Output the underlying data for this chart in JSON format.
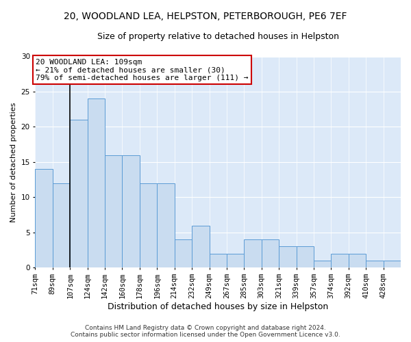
{
  "title1": "20, WOODLAND LEA, HELPSTON, PETERBOROUGH, PE6 7EF",
  "title2": "Size of property relative to detached houses in Helpston",
  "xlabel": "Distribution of detached houses by size in Helpston",
  "ylabel": "Number of detached properties",
  "footnote": "Contains HM Land Registry data © Crown copyright and database right 2024.\nContains public sector information licensed under the Open Government Licence v3.0.",
  "bins": [
    "71sqm",
    "89sqm",
    "107sqm",
    "124sqm",
    "142sqm",
    "160sqm",
    "178sqm",
    "196sqm",
    "214sqm",
    "232sqm",
    "249sqm",
    "267sqm",
    "285sqm",
    "303sqm",
    "321sqm",
    "339sqm",
    "357sqm",
    "374sqm",
    "392sqm",
    "410sqm",
    "428sqm"
  ],
  "bar_values": [
    14,
    12,
    21,
    24,
    16,
    16,
    12,
    12,
    4,
    6,
    2,
    2,
    4,
    4,
    3,
    3,
    1,
    2,
    2,
    1,
    1
  ],
  "bar_color": "#c9dcf0",
  "bar_edge_color": "#5b9bd5",
  "vline_index": 2,
  "annotation_text": "20 WOODLAND LEA: 109sqm\n← 21% of detached houses are smaller (30)\n79% of semi-detached houses are larger (111) →",
  "annotation_box_facecolor": "#ffffff",
  "annotation_box_edgecolor": "#cc0000",
  "vline_color": "black",
  "ylim": [
    0,
    30
  ],
  "yticks": [
    0,
    5,
    10,
    15,
    20,
    25,
    30
  ],
  "plot_bg_color": "#dce9f8",
  "fig_bg_color": "#ffffff",
  "grid_color": "#ffffff",
  "title1_fontsize": 10,
  "title2_fontsize": 9,
  "xlabel_fontsize": 9,
  "ylabel_fontsize": 8,
  "tick_fontsize": 7.5,
  "annotation_fontsize": 8
}
